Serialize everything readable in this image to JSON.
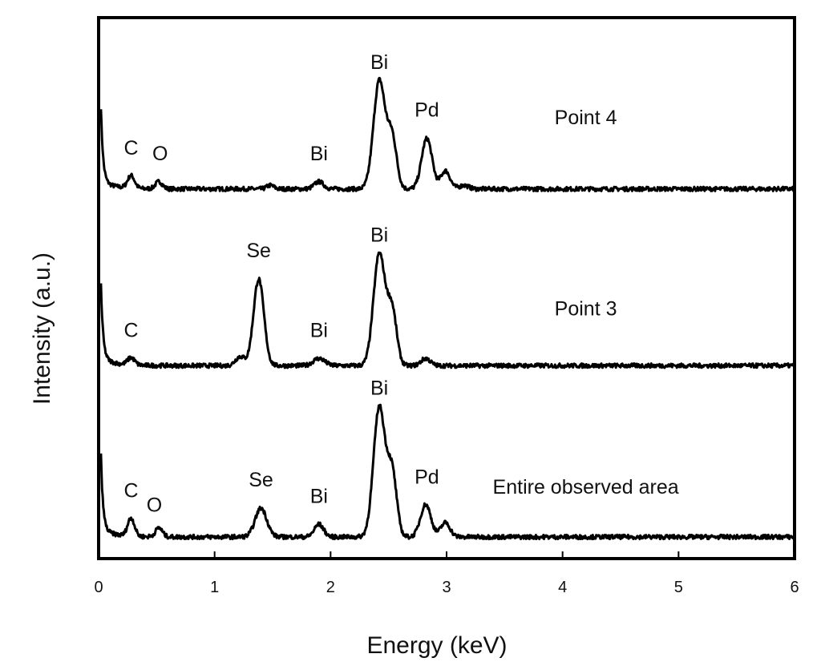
{
  "chart_data": {
    "type": "line",
    "xlabel": "Energy (keV)",
    "ylabel": "Intensity (a.u.)",
    "xlim": [
      0,
      6
    ],
    "ylim": [
      0,
      3
    ],
    "x_ticks": [
      0,
      1,
      2,
      3,
      4,
      5,
      6
    ],
    "x_tick_labels": [
      "0",
      "1",
      "2",
      "3",
      "4",
      "5",
      "6"
    ],
    "grid": false,
    "y_ticks_shown": false,
    "line_color": "#000000",
    "series": [
      {
        "name": "Point 4",
        "offset": 2.05,
        "noise": 0.012,
        "peaks": [
          {
            "e": 0.28,
            "h": 0.07,
            "w": 0.03
          },
          {
            "e": 0.52,
            "h": 0.04,
            "w": 0.03
          },
          {
            "e": 1.48,
            "h": 0.02,
            "w": 0.03
          },
          {
            "e": 1.9,
            "h": 0.04,
            "w": 0.04
          },
          {
            "e": 2.42,
            "h": 0.6,
            "w": 0.05
          },
          {
            "e": 2.53,
            "h": 0.28,
            "w": 0.04
          },
          {
            "e": 2.83,
            "h": 0.28,
            "w": 0.045
          },
          {
            "e": 2.99,
            "h": 0.1,
            "w": 0.04
          },
          {
            "e": 3.15,
            "h": 0.02,
            "w": 0.04
          }
        ]
      },
      {
        "name": "Point 3",
        "offset": 1.07,
        "noise": 0.012,
        "peaks": [
          {
            "e": 0.28,
            "h": 0.04,
            "w": 0.03
          },
          {
            "e": 1.22,
            "h": 0.05,
            "w": 0.04
          },
          {
            "e": 1.38,
            "h": 0.48,
            "w": 0.045
          },
          {
            "e": 1.9,
            "h": 0.04,
            "w": 0.05
          },
          {
            "e": 2.42,
            "h": 0.62,
            "w": 0.05
          },
          {
            "e": 2.53,
            "h": 0.3,
            "w": 0.04
          },
          {
            "e": 2.82,
            "h": 0.04,
            "w": 0.04
          }
        ]
      },
      {
        "name": "Entire observed area",
        "offset": 0.12,
        "noise": 0.012,
        "peaks": [
          {
            "e": 0.28,
            "h": 0.1,
            "w": 0.03
          },
          {
            "e": 0.52,
            "h": 0.05,
            "w": 0.03
          },
          {
            "e": 1.4,
            "h": 0.16,
            "w": 0.05
          },
          {
            "e": 1.9,
            "h": 0.07,
            "w": 0.04
          },
          {
            "e": 2.42,
            "h": 0.72,
            "w": 0.05
          },
          {
            "e": 2.53,
            "h": 0.35,
            "w": 0.04
          },
          {
            "e": 2.82,
            "h": 0.18,
            "w": 0.045
          },
          {
            "e": 2.99,
            "h": 0.08,
            "w": 0.04
          }
        ]
      }
    ],
    "annotations": [
      {
        "series": "Point 4",
        "text": "C",
        "e": 0.28
      },
      {
        "series": "Point 4",
        "text": "O",
        "e": 0.53
      },
      {
        "series": "Point 4",
        "text": "Bi",
        "e": 1.9
      },
      {
        "series": "Point 4",
        "text": "Bi",
        "e": 2.42
      },
      {
        "series": "Point 4",
        "text": "Pd",
        "e": 2.83
      },
      {
        "series": "Point 3",
        "text": "C",
        "e": 0.28
      },
      {
        "series": "Point 3",
        "text": "Se",
        "e": 1.38
      },
      {
        "series": "Point 3",
        "text": "Bi",
        "e": 1.9
      },
      {
        "series": "Point 3",
        "text": "Bi",
        "e": 2.42
      },
      {
        "series": "Point 3",
        "text": "",
        "e": 2.83
      },
      {
        "series": "Entire observed area",
        "text": "C",
        "e": 0.28
      },
      {
        "series": "Entire observed area",
        "text": "O",
        "e": 0.48
      },
      {
        "series": "Entire observed area",
        "text": "Se",
        "e": 1.4
      },
      {
        "series": "Entire observed area",
        "text": "Bi",
        "e": 1.9
      },
      {
        "series": "Entire observed area",
        "text": "Bi",
        "e": 2.42
      },
      {
        "series": "Entire observed area",
        "text": "Pd",
        "e": 2.83
      }
    ]
  }
}
